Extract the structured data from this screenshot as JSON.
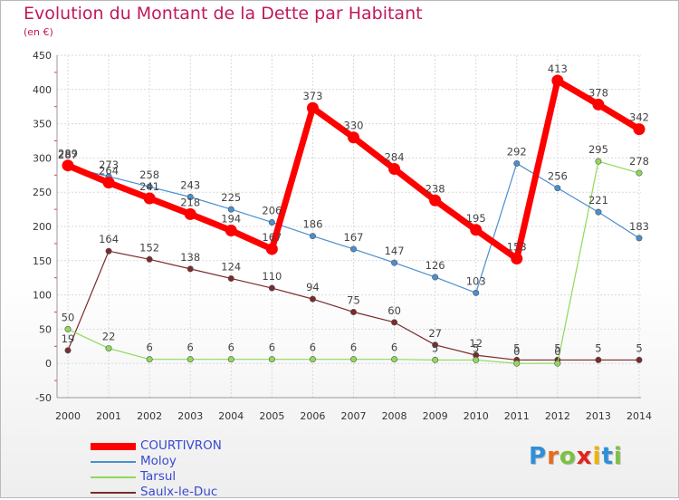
{
  "header": {
    "title": "Evolution du Montant de la Dette par Habitant",
    "unit": "(en €)"
  },
  "logo": {
    "text": "Proxiti",
    "colors": [
      "#2f8fd8",
      "#e86b1c",
      "#7cc242",
      "#e2231a",
      "#f0b400",
      "#2f8fd8",
      "#7cc242"
    ]
  },
  "chart_data": {
    "type": "line",
    "x": [
      "2000",
      "2001",
      "2002",
      "2003",
      "2004",
      "2005",
      "2006",
      "2007",
      "2008",
      "2009",
      "2010",
      "2011",
      "2012",
      "2013",
      "2014"
    ],
    "ylim": [
      -50,
      450
    ],
    "yticks": [
      -50,
      0,
      50,
      100,
      150,
      200,
      250,
      300,
      350,
      400,
      450
    ],
    "grid": true,
    "legend_position": "bottom-left",
    "series": [
      {
        "name": "COURTIVRON",
        "color": "#ff0000",
        "values": [
          289,
          264,
          241,
          218,
          194,
          167,
          373,
          330,
          284,
          238,
          195,
          153,
          413,
          378,
          342
        ]
      },
      {
        "name": "Moloy",
        "color": "#4a8fcf",
        "values": [
          287,
          273,
          258,
          243,
          225,
          206,
          186,
          167,
          147,
          126,
          103,
          292,
          256,
          221,
          183
        ]
      },
      {
        "name": "Tarsul",
        "color": "#8fd95a",
        "values": [
          50,
          22,
          6,
          6,
          6,
          6,
          6,
          6,
          6,
          5,
          5,
          0,
          0,
          295,
          278
        ]
      },
      {
        "name": "Saulx-le-Duc",
        "color": "#7a2b2b",
        "values": [
          19,
          164,
          152,
          138,
          124,
          110,
          94,
          75,
          60,
          27,
          12,
          5,
          5,
          5,
          5
        ]
      }
    ]
  }
}
